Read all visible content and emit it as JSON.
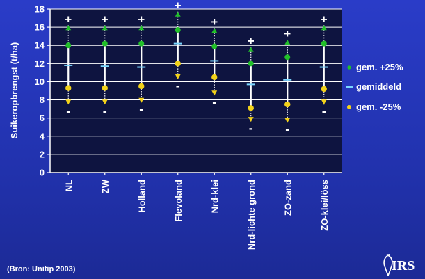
{
  "source_note": "(Bron: Unitip 2003)",
  "logo_text": "IRS",
  "colors": {
    "background": "#2233b0",
    "plot_bg": "#0e1440",
    "axis": "#ffffff",
    "plus_marker": "#22c02a",
    "minus_marker": "#f2d21a",
    "mean_marker": "#7ad6ff",
    "whisker": "#ffffff"
  },
  "chart_data": {
    "type": "range",
    "ylabel": "Suikeropbrengst (t/ha)",
    "ylim": [
      0,
      18
    ],
    "yticks": [
      0,
      2,
      4,
      6,
      8,
      10,
      12,
      14,
      16,
      18
    ],
    "categories": [
      "NL",
      "ZW",
      "Holland",
      "Flevoland",
      "Nrd-klei",
      "Nrd-lichte grond",
      "ZO-zand",
      "ZO-klei/löss"
    ],
    "series": [
      {
        "name": "gem. +25%",
        "values": [
          14.0,
          14.2,
          14.2,
          15.7,
          13.9,
          12.0,
          12.7,
          14.2
        ]
      },
      {
        "name": "gemiddeld",
        "values": [
          11.8,
          11.7,
          11.6,
          14.2,
          12.3,
          9.7,
          10.2,
          11.6
        ]
      },
      {
        "name": "gem. -25%",
        "values": [
          9.3,
          9.3,
          9.5,
          12.0,
          10.5,
          7.1,
          7.5,
          9.2
        ]
      }
    ],
    "range_max": [
      16.6,
      16.6,
      16.6,
      18.1,
      16.3,
      14.2,
      15.0,
      16.6
    ],
    "range_min": [
      7.1,
      7.1,
      7.3,
      9.9,
      8.1,
      5.2,
      5.1,
      7.1
    ],
    "plus_symbol": "+",
    "minus_symbol": "-",
    "legend_placement": "right",
    "grid": true
  }
}
